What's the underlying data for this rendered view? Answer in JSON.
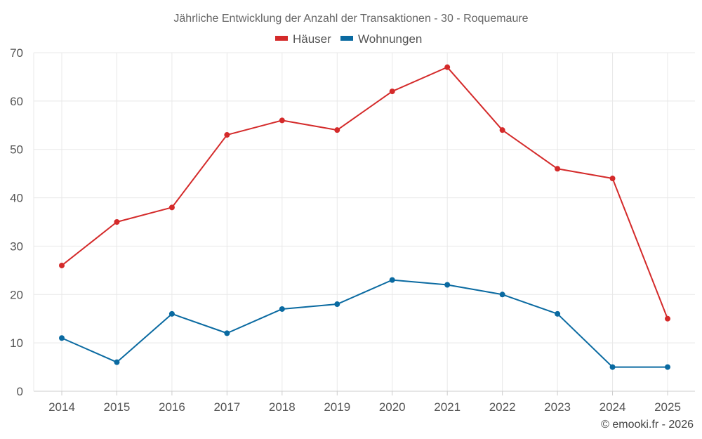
{
  "chart_data": {
    "type": "line",
    "title": "Jährliche Entwicklung der Anzahl der Transaktionen - 30 - Roquemaure",
    "xlabel": "",
    "ylabel": "",
    "categories": [
      "2014",
      "2015",
      "2016",
      "2017",
      "2018",
      "2019",
      "2020",
      "2021",
      "2022",
      "2023",
      "2024",
      "2025"
    ],
    "series": [
      {
        "name": "Häuser",
        "color": "#d42a2a",
        "values": [
          26,
          35,
          38,
          53,
          56,
          54,
          62,
          67,
          54,
          46,
          44,
          15
        ]
      },
      {
        "name": "Wohnungen",
        "color": "#0a6aa1",
        "values": [
          11,
          6,
          16,
          12,
          17,
          18,
          23,
          22,
          20,
          16,
          5,
          5
        ]
      }
    ],
    "ylim": [
      0,
      70
    ],
    "yticks": [
      0,
      10,
      20,
      30,
      40,
      50,
      60,
      70
    ],
    "grid": true,
    "legend_position": "top-center"
  },
  "credit": "© emooki.fr - 2026"
}
